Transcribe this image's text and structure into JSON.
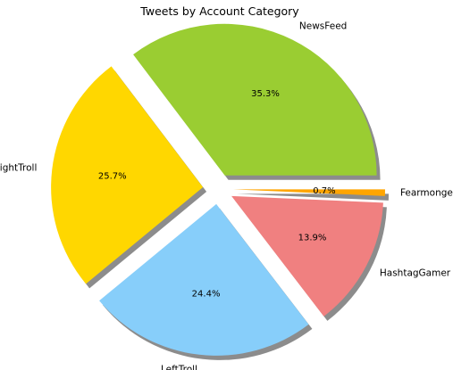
{
  "chart_data": {
    "type": "pie",
    "title": "Tweets by Account Category",
    "slices": [
      {
        "label": "NewsFeed",
        "value": 35.3,
        "pct_label": "35.3%",
        "color": "#9acd32",
        "exploded": true
      },
      {
        "label": "RightTroll",
        "value": 25.7,
        "pct_label": "25.7%",
        "color": "#ffd700",
        "exploded": true
      },
      {
        "label": "LeftTroll",
        "value": 24.4,
        "pct_label": "24.4%",
        "color": "#87cefa",
        "exploded": true
      },
      {
        "label": "HashtagGamer",
        "value": 13.9,
        "pct_label": "13.9%",
        "color": "#f08080",
        "exploded": true
      },
      {
        "label": "Fearmonger",
        "value": 0.7,
        "pct_label": "0.7%",
        "color": "#ffa500",
        "exploded": true
      }
    ],
    "start_angle_deg": 0,
    "direction": "counterclockwise",
    "shadow": true,
    "legend": "none"
  }
}
